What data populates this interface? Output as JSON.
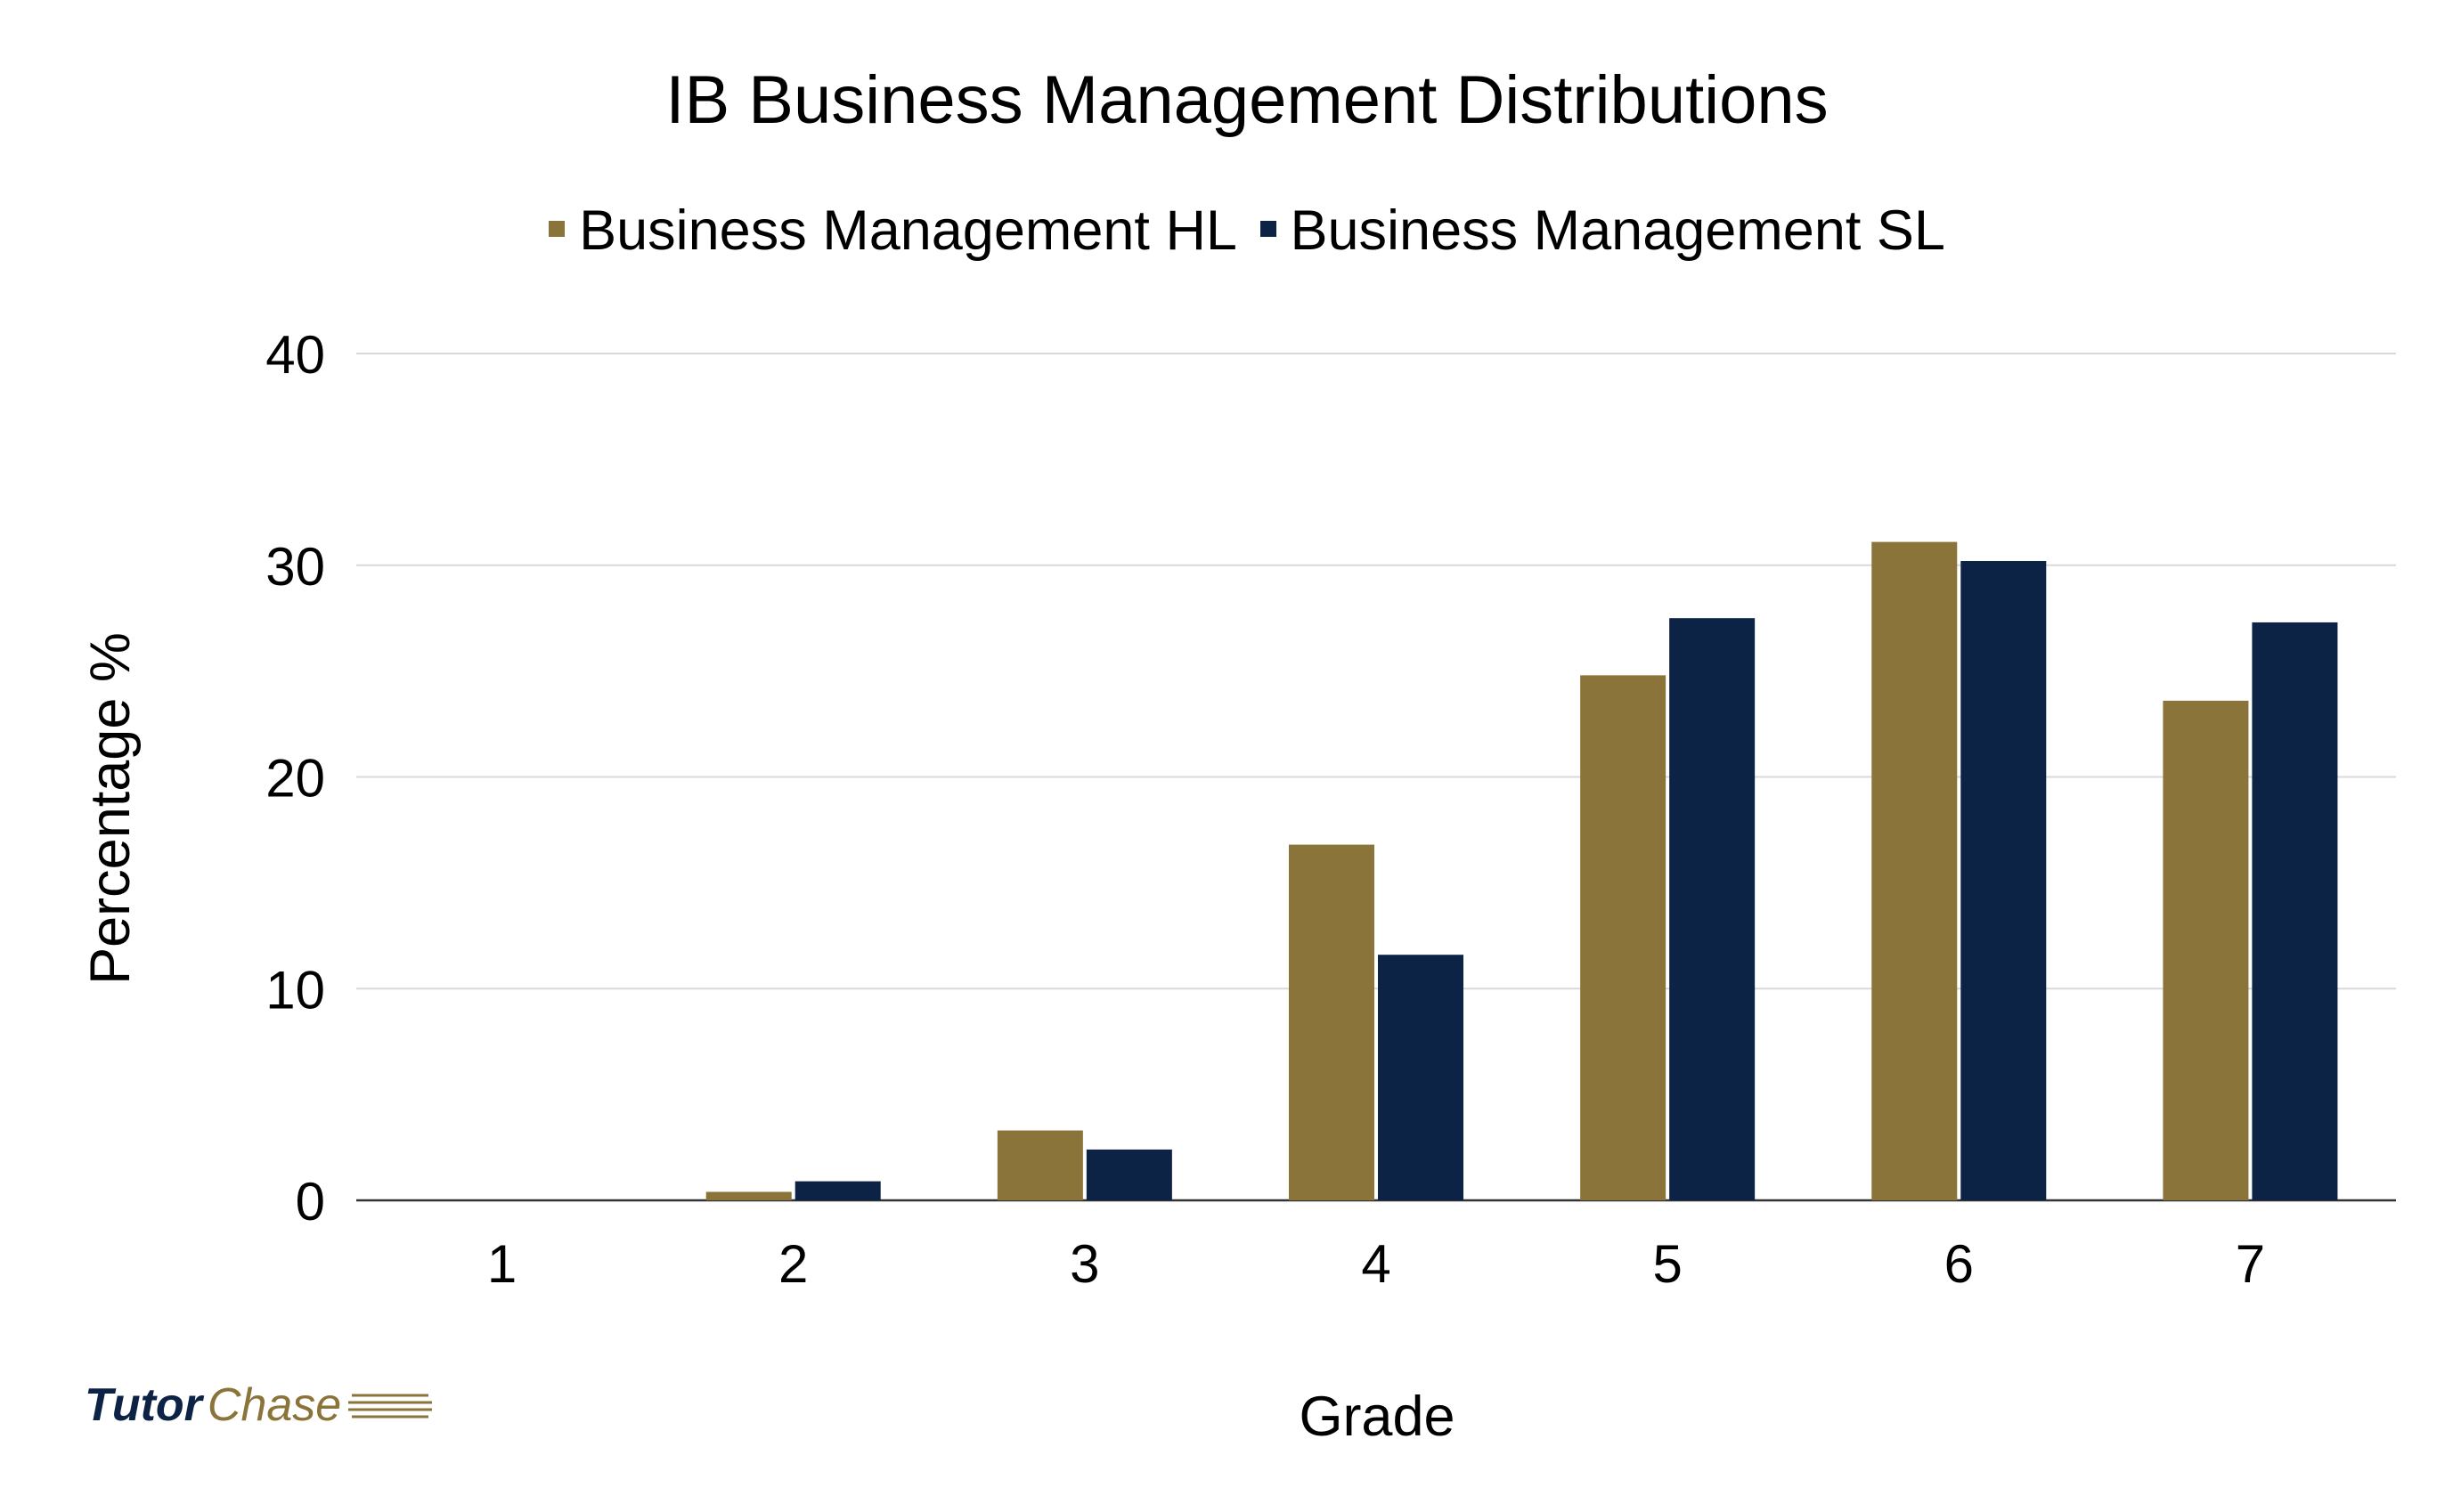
{
  "chart_data": {
    "type": "bar",
    "title": "IB Business Management Distributions",
    "xlabel": "Grade",
    "ylabel": "Percentage %",
    "categories": [
      "1",
      "2",
      "3",
      "4",
      "5",
      "6",
      "7"
    ],
    "series": [
      {
        "name": "Business Management HL",
        "color": "#8b743a",
        "values": [
          0,
          0.4,
          3.3,
          16.8,
          24.8,
          31.1,
          23.6
        ]
      },
      {
        "name": "Business Management SL",
        "color": "#0c2346",
        "values": [
          0,
          0.9,
          2.4,
          11.6,
          27.5,
          30.2,
          27.3
        ]
      }
    ],
    "ylim": [
      0,
      40
    ],
    "yticks": [
      0,
      10,
      20,
      30,
      40
    ],
    "grid": true,
    "legend_position": "top"
  },
  "logo": {
    "part1": "Tutor",
    "part2": "Chase"
  }
}
